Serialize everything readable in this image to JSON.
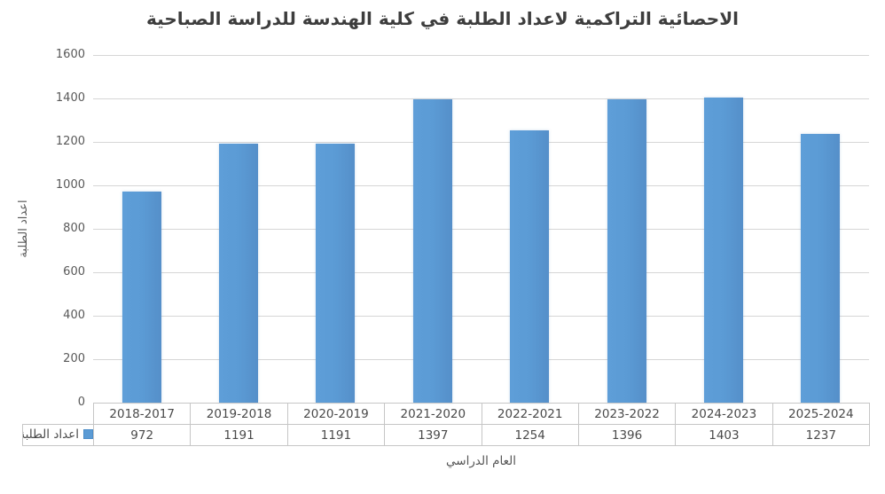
{
  "chart_data": {
    "type": "bar",
    "title": "الاحصائية التراكمية لاعداد الطلبة في كلية الهندسة للدراسة الصباحية",
    "categories": [
      "2018-2017",
      "2019-2018",
      "2020-2019",
      "2021-2020",
      "2022-2021",
      "2023-2022",
      "2024-2023",
      "2025-2024"
    ],
    "series": [
      {
        "name": "اعداد الطلبة",
        "values": [
          972,
          1191,
          1191,
          1397,
          1254,
          1396,
          1403,
          1237
        ]
      }
    ],
    "xlabel": "العام الدراسي",
    "ylabel": "اعداد الطلبة",
    "ylim": [
      0,
      1600
    ],
    "ytick_interval": 200,
    "yticks": [
      "1600",
      "1400",
      "1200",
      "1000",
      "800",
      "600",
      "400",
      "200",
      "0"
    ],
    "grid": true,
    "legend_position": "data-table-left",
    "bar_color": "#5b9bd5",
    "gridline_color": "#d6d6d6"
  }
}
